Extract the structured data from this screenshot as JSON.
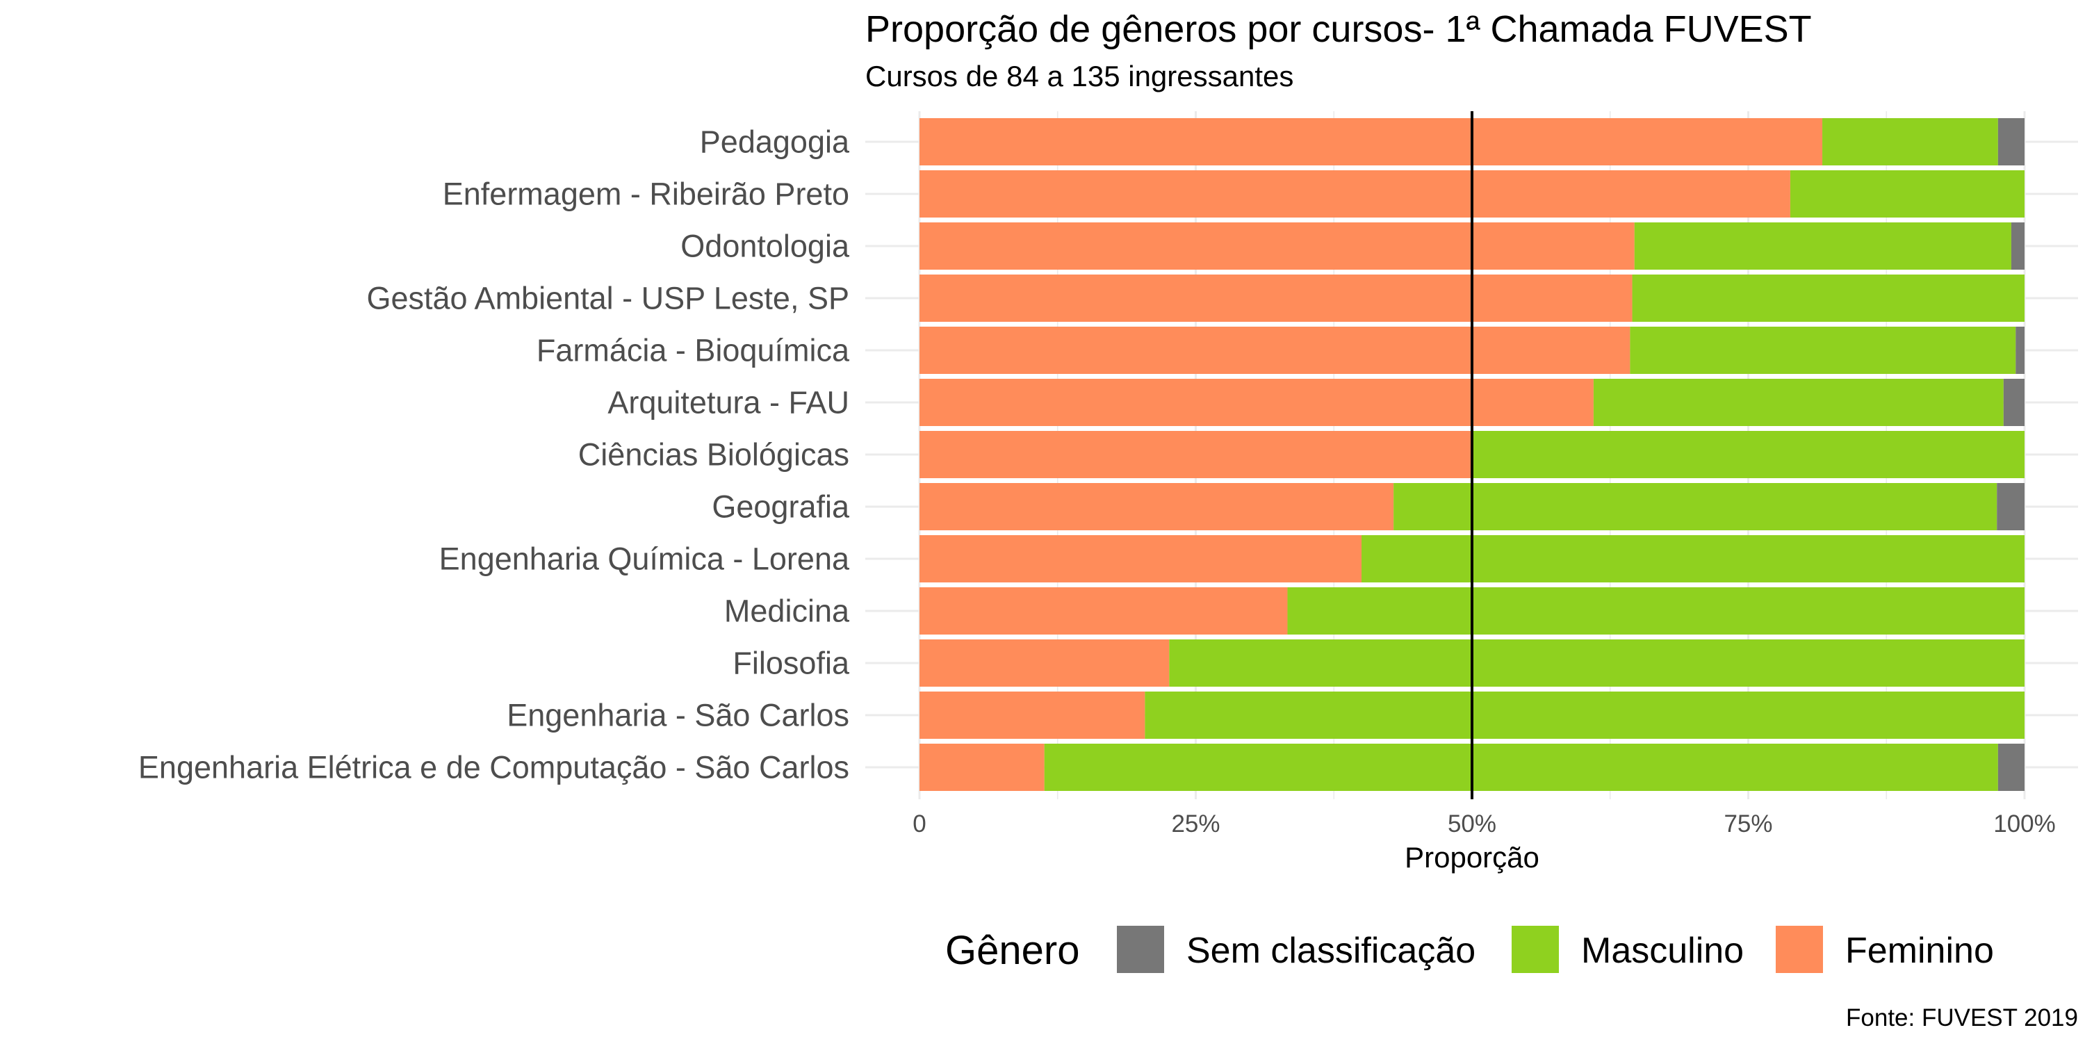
{
  "chart_data": {
    "type": "bar",
    "orientation": "horizontal",
    "stacked": true,
    "title": "Proporção de gêneros por cursos- 1ª Chamada FUVEST",
    "subtitle": "Cursos de 84 a 135 ingressantes",
    "xlabel": "Proporção",
    "ylabel": "",
    "xlim": [
      0,
      1
    ],
    "x_ticks": [
      0,
      0.25,
      0.5,
      0.75,
      1
    ],
    "x_tick_labels": [
      "0",
      "25%",
      "50%",
      "75%",
      "100%"
    ],
    "reference_line": 0.5,
    "grid": true,
    "categories": [
      "Pedagogia",
      "Enfermagem - Ribeirão Preto",
      "Odontologia",
      "Gestão Ambiental - USP Leste, SP",
      "Farmácia - Bioquímica",
      "Arquitetura - FAU",
      "Ciências Biológicas",
      "Geografia",
      "Engenharia Química - Lorena",
      "Medicina",
      "Filosofia",
      "Engenharia - São Carlos",
      "Engenharia Elétrica e de Computação - São Carlos"
    ],
    "series": [
      {
        "name": "Feminino",
        "color": "#FF8C5A",
        "values": [
          0.817,
          0.788,
          0.647,
          0.645,
          0.643,
          0.61,
          0.5,
          0.429,
          0.4,
          0.333,
          0.226,
          0.204,
          0.113
        ]
      },
      {
        "name": "Masculino",
        "color": "#8FD11F",
        "values": [
          0.159,
          0.212,
          0.341,
          0.355,
          0.349,
          0.371,
          0.5,
          0.546,
          0.6,
          0.667,
          0.774,
          0.796,
          0.863
        ]
      },
      {
        "name": "Sem classificação",
        "color": "#777777",
        "values": [
          0.024,
          0.0,
          0.012,
          0.0,
          0.008,
          0.019,
          0.0,
          0.025,
          0.0,
          0.0,
          0.0,
          0.0,
          0.024
        ]
      }
    ],
    "legend": {
      "title": "Gênero",
      "placement": "bottom",
      "order": [
        "Sem classificação",
        "Masculino",
        "Feminino"
      ]
    },
    "caption": "Fonte: FUVEST 2019"
  }
}
